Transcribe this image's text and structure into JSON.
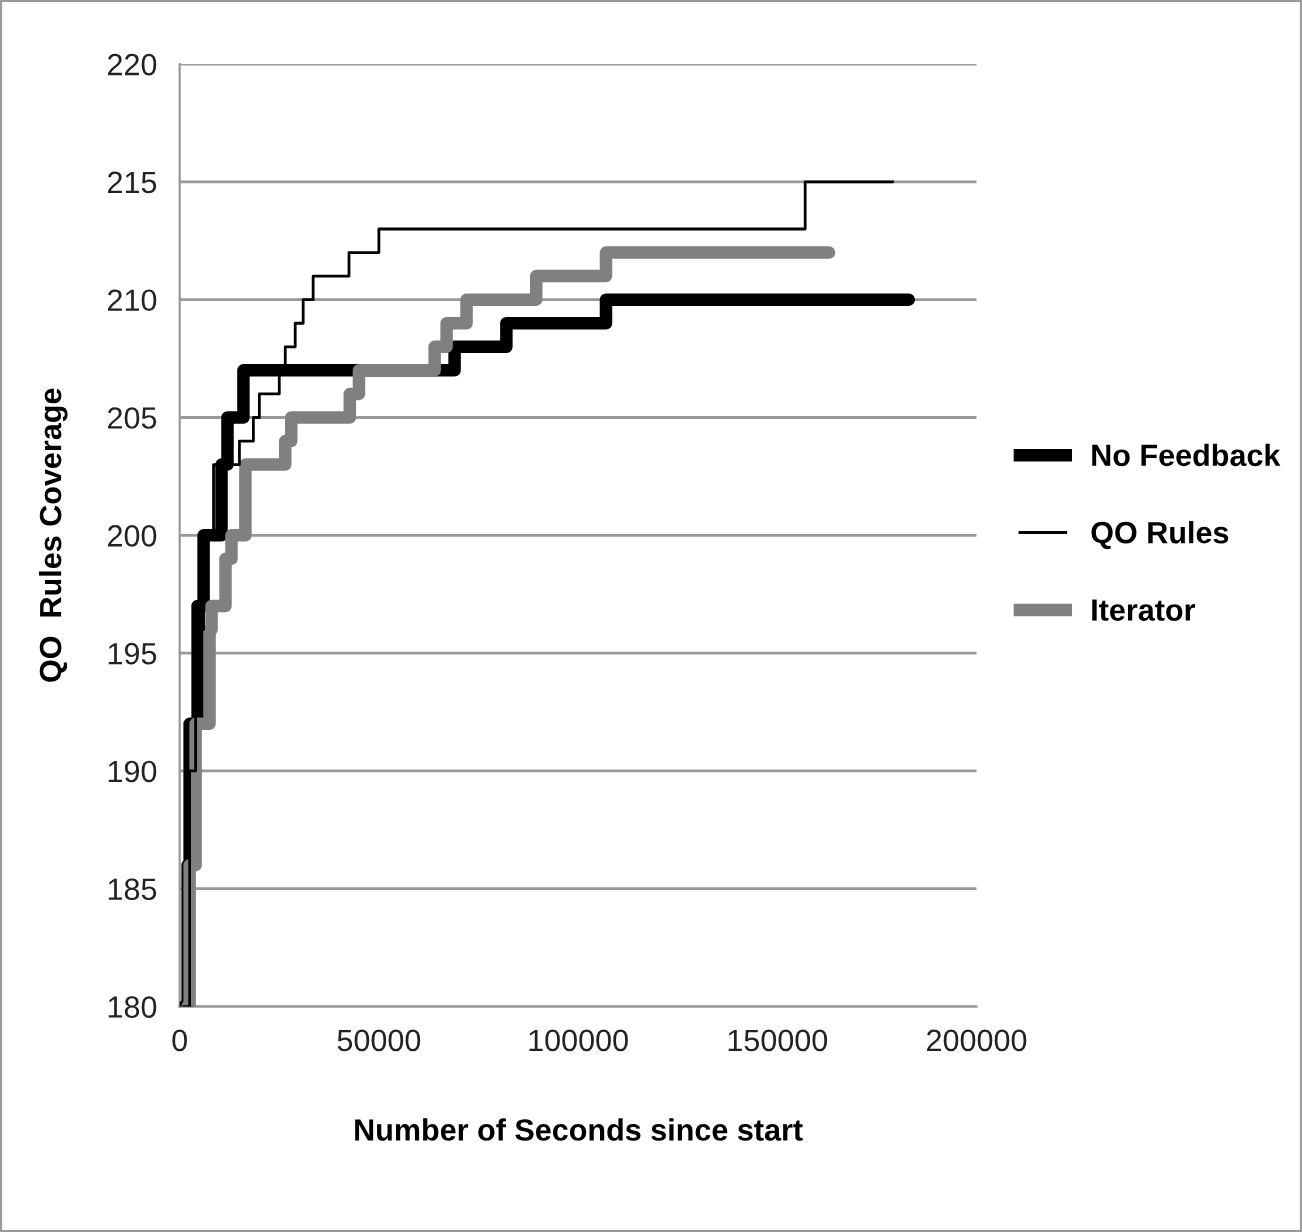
{
  "chart_data": {
    "type": "step",
    "xlabel": "Number of Seconds since start",
    "ylabel": "QO  Rules Coverage",
    "xlim": [
      0,
      200000
    ],
    "xticks": [
      0,
      50000,
      100000,
      150000,
      200000
    ],
    "ylim": [
      180,
      220
    ],
    "yticks": [
      180,
      185,
      190,
      195,
      200,
      205,
      210,
      215,
      220
    ],
    "grid": "y",
    "legend": "right",
    "marker": "none",
    "line_style": "solid",
    "series": [
      {
        "name": "No Feedback",
        "color": "#000000",
        "x": [
          1000,
          2000,
          2500,
          4500,
          6000,
          10500,
          12000,
          16000,
          69000,
          82000,
          107000,
          183000
        ],
        "values": [
          180,
          186,
          192,
          197,
          200,
          203,
          205,
          207,
          208,
          209,
          210,
          210
        ]
      },
      {
        "name": "QO Rules",
        "color": "#000000",
        "x": [
          1000,
          2500,
          4000,
          6000,
          8500,
          15000,
          18500,
          20000,
          25000,
          26500,
          29000,
          31000,
          33500,
          42500,
          50000,
          157000,
          179000
        ],
        "values": [
          180,
          190,
          196,
          200,
          203,
          204,
          205,
          206,
          207,
          208,
          209,
          210,
          211,
          212,
          213,
          215,
          215
        ]
      },
      {
        "name": "Iterator",
        "color": "#808080",
        "x": [
          2000,
          2500,
          4000,
          7500,
          8000,
          11500,
          13000,
          16500,
          26500,
          28000,
          42700,
          45000,
          64000,
          67000,
          72000,
          89500,
          107000,
          163000
        ],
        "values": [
          180,
          186,
          192,
          196,
          197,
          199,
          200,
          203,
          204,
          205,
          206,
          207,
          208,
          209,
          210,
          211,
          212,
          212
        ]
      }
    ]
  }
}
